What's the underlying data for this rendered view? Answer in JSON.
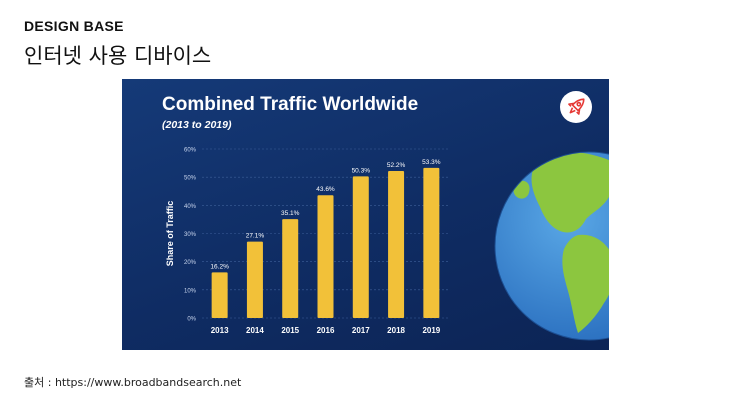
{
  "header": {
    "brand": "DESIGN BASE",
    "subtitle": "인터넷 사용 디바이스"
  },
  "footer": {
    "source": "출처 : https://www.broadbandsearch.net"
  },
  "icons": {
    "rocket": "rocket-icon",
    "globe": "globe-illustration"
  },
  "colors": {
    "panel_bg": "#12336e",
    "bar": "#f2c139",
    "accent_red": "#e53935"
  },
  "chart_data": {
    "type": "bar",
    "title": "Combined Traffic Worldwide",
    "subtitle": "(2013 to 2019)",
    "xlabel": "",
    "ylabel": "Share of Traffic",
    "categories": [
      "2013",
      "2014",
      "2015",
      "2016",
      "2017",
      "2018",
      "2019"
    ],
    "values": [
      16.2,
      27.1,
      35.1,
      43.6,
      50.3,
      52.2,
      53.3
    ],
    "value_labels": [
      "16.2%",
      "27.1%",
      "35.1%",
      "43.6%",
      "50.3%",
      "52.2%",
      "53.3%"
    ],
    "ylim": [
      0,
      60
    ],
    "yticks": [
      0,
      10,
      20,
      30,
      40,
      50,
      60
    ],
    "ytick_labels": [
      "0%",
      "10%",
      "20%",
      "30%",
      "40%",
      "50%",
      "60%"
    ],
    "grid": true,
    "legend": "none"
  }
}
